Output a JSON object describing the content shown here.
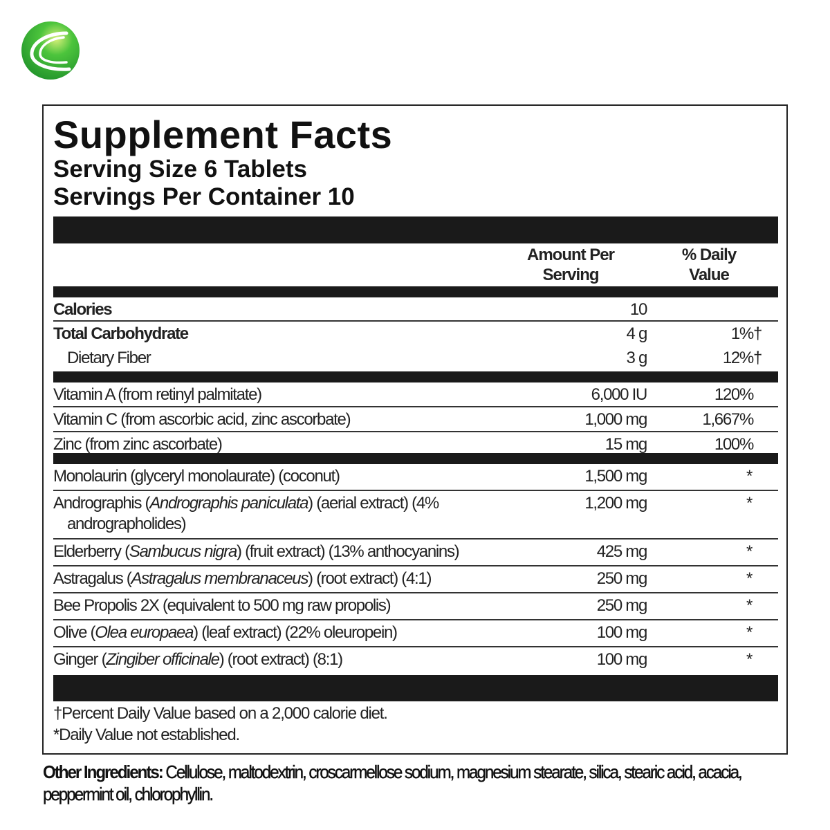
{
  "brand": {
    "logo_icon": "green-sphere-swoosh-logo",
    "accent": "#3cb83a"
  },
  "panel": {
    "title": "Supplement Facts",
    "serving_size": "Serving Size 6 Tablets",
    "servings_per_container": "Servings Per Container 10",
    "col_amount": [
      "Amount Per",
      "Serving"
    ],
    "col_dv": [
      "% Daily",
      "Value"
    ]
  },
  "nutrients": [
    {
      "name": "Calories",
      "amount": "10",
      "dv": ""
    },
    {
      "name": "Total Carbohydrate",
      "amount": "4 g",
      "dv": "1%†"
    },
    {
      "name": "Dietary Fiber",
      "amount": "3 g",
      "dv": "12%†"
    }
  ],
  "vitamins": [
    {
      "name": "Vitamin A (from retinyl palmitate)",
      "amount": "6,000 IU",
      "dv": "120%"
    },
    {
      "name": "Vitamin C (from ascorbic acid, zinc ascorbate)",
      "amount": "1,000 mg",
      "dv": "1,667%"
    },
    {
      "name": "Zinc (from zinc ascorbate)",
      "amount": "15 mg",
      "dv": "100%"
    }
  ],
  "herbals": [
    {
      "pre": "Monolaurin (glyceryl monolaurate) (coconut)",
      "latin": "",
      "post": "",
      "amount": "1,500 mg",
      "dv": "*"
    },
    {
      "pre": "Andrographis (",
      "latin": "Andrographis paniculata",
      "post": ") (aerial extract) (4% andrographolides)",
      "amount": "1,200 mg",
      "dv": "*"
    },
    {
      "pre": "Elderberry (",
      "latin": "Sambucus nigra",
      "post": ") (fruit extract) (13% anthocyanins)",
      "amount": "425 mg",
      "dv": "*"
    },
    {
      "pre": "Astragalus (",
      "latin": "Astragalus membranaceus",
      "post": ") (root extract) (4:1)",
      "amount": "250 mg",
      "dv": "*"
    },
    {
      "pre": "Bee Propolis 2X (equivalent to 500 mg raw propolis)",
      "latin": "",
      "post": "",
      "amount": "250 mg",
      "dv": "*"
    },
    {
      "pre": "Olive (",
      "latin": "Olea europaea",
      "post": ") (leaf extract) (22% oleuropein)",
      "amount": "100 mg",
      "dv": "*"
    },
    {
      "pre": "Ginger (",
      "latin": "Zingiber officinale",
      "post": ") (root extract) (8:1)",
      "amount": "100 mg",
      "dv": "*"
    }
  ],
  "footnotes": [
    "†Percent Daily Value based on a 2,000 calorie diet.",
    "*Daily Value not established."
  ],
  "other_ingredients": {
    "label": "Other Ingredients:",
    "text": " Cellulose, maltodextrin, croscarmellose sodium, magnesium stearate, silica, stearic acid, acacia, peppermint oil, chlorophyllin."
  }
}
